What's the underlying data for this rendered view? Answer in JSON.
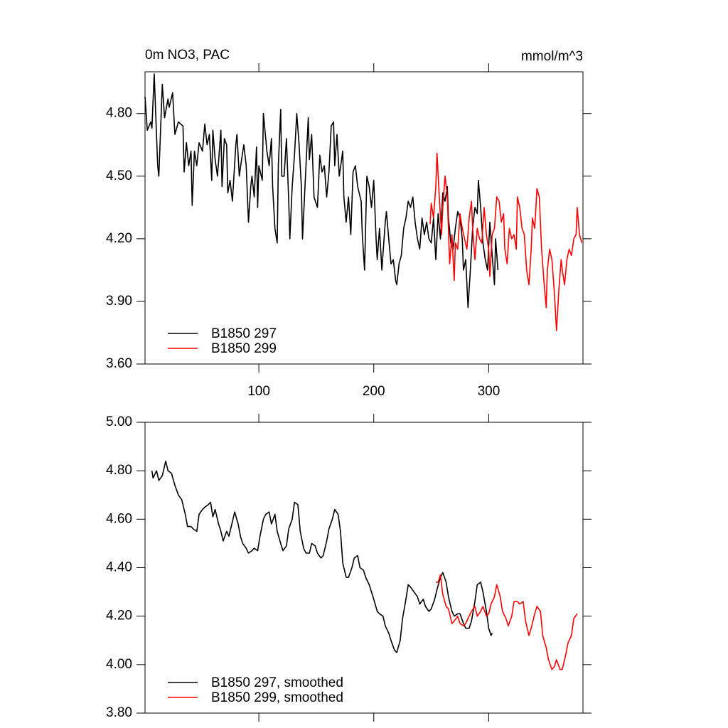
{
  "chart_data": [
    {
      "type": "line",
      "title": "0m NO3, PAC",
      "units": "mmol/m^3",
      "xlim": [
        1,
        382
      ],
      "xticks": [
        100,
        200,
        300
      ],
      "xtick_labels": true,
      "ylim": [
        3.6,
        5.0
      ],
      "yticks": [
        {
          "value": 3.6,
          "label": "3.60"
        },
        {
          "value": 3.9,
          "label": "3.90"
        },
        {
          "value": 4.2,
          "label": "4.20"
        },
        {
          "value": 4.5,
          "label": "4.50"
        },
        {
          "value": 4.8,
          "label": "4.80"
        }
      ],
      "legend": "lower left",
      "series": [
        {
          "name": "B1850 297",
          "color": "#000000",
          "x": [
            1,
            3,
            6,
            7,
            9,
            12,
            13,
            16,
            18,
            21,
            22,
            25,
            27,
            30,
            34,
            35,
            37,
            39,
            41,
            42,
            44,
            46,
            48,
            51,
            53,
            55,
            57,
            59,
            60,
            62,
            64,
            67,
            68,
            70,
            72,
            73,
            75,
            77,
            80,
            81,
            83,
            85,
            87,
            89,
            91,
            93,
            94,
            96,
            98,
            99,
            100,
            103,
            104,
            107,
            109,
            111,
            112,
            114,
            116,
            117,
            119,
            120,
            122,
            124,
            126,
            127,
            129,
            131,
            133,
            135,
            137,
            138,
            141,
            143,
            144,
            146,
            148,
            151,
            153,
            155,
            157,
            159,
            161,
            163,
            165,
            166,
            168,
            170,
            173,
            174,
            176,
            178,
            180,
            182,
            184,
            186,
            189,
            190,
            192,
            194,
            196,
            198,
            200,
            202,
            203,
            205,
            207,
            210,
            211,
            213,
            215,
            217,
            219,
            220,
            222,
            224,
            226,
            228,
            230,
            232,
            234,
            236,
            238,
            240,
            242,
            244,
            246,
            248,
            250,
            252,
            254,
            256,
            258,
            260,
            262,
            264,
            265,
            267,
            269,
            271,
            273,
            275,
            277,
            278,
            280,
            282,
            284,
            286,
            288,
            290,
            291,
            293,
            295,
            297,
            299,
            301,
            303,
            305,
            306,
            308
          ],
          "values": [
            4.88,
            4.72,
            4.76,
            4.73,
            4.99,
            4.55,
            4.5,
            4.94,
            4.78,
            4.87,
            4.83,
            4.9,
            4.7,
            4.76,
            4.74,
            4.52,
            4.66,
            4.55,
            4.62,
            4.36,
            4.62,
            4.55,
            4.66,
            4.62,
            4.75,
            4.65,
            4.7,
            4.48,
            4.72,
            4.58,
            4.5,
            4.72,
            4.45,
            4.68,
            4.65,
            4.42,
            4.48,
            4.38,
            4.65,
            4.7,
            4.5,
            4.58,
            4.65,
            4.55,
            4.28,
            4.45,
            4.5,
            4.4,
            4.64,
            4.35,
            4.55,
            4.48,
            4.8,
            4.62,
            4.55,
            4.68,
            4.45,
            4.25,
            4.18,
            4.55,
            4.82,
            4.5,
            4.5,
            4.68,
            4.38,
            4.2,
            4.45,
            4.6,
            4.8,
            4.65,
            4.45,
            4.2,
            4.55,
            4.78,
            4.58,
            4.7,
            4.4,
            4.35,
            4.6,
            4.52,
            4.55,
            4.4,
            4.52,
            4.74,
            4.76,
            4.55,
            4.7,
            4.5,
            4.62,
            4.4,
            4.28,
            4.4,
            4.22,
            4.52,
            4.55,
            4.45,
            4.38,
            4.22,
            4.05,
            4.5,
            4.45,
            4.35,
            4.48,
            4.2,
            4.1,
            4.25,
            4.05,
            4.28,
            4.33,
            4.2,
            4.08,
            4.1,
            4.0,
            3.98,
            4.08,
            4.12,
            4.25,
            4.3,
            4.38,
            4.35,
            4.4,
            4.28,
            4.2,
            4.15,
            4.3,
            4.22,
            4.28,
            4.2,
            4.18,
            4.3,
            4.1,
            4.32,
            4.2,
            4.42,
            4.38,
            4.45,
            4.3,
            4.18,
            4.15,
            4.25,
            4.33,
            4.3,
            4.2,
            4.05,
            4.1,
            3.87,
            4.05,
            4.25,
            4.35,
            4.32,
            4.48,
            4.35,
            4.18,
            4.1,
            4.05,
            4.28,
            4.12,
            3.98,
            4.2,
            4.05
          ]
        },
        {
          "name": "B1850 299",
          "color": "#ff0000",
          "x": [
            249,
            250,
            252,
            254,
            255,
            257,
            259,
            260,
            262,
            264,
            266,
            268,
            270,
            271,
            273,
            275,
            277,
            279,
            281,
            283,
            285,
            286,
            288,
            290,
            292,
            294,
            296,
            298,
            300,
            301,
            303,
            305,
            307,
            309,
            311,
            313,
            314,
            316,
            318,
            320,
            322,
            324,
            325,
            327,
            329,
            331,
            333,
            335,
            337,
            338,
            340,
            342,
            344,
            346,
            348,
            350,
            351,
            353,
            355,
            357,
            359,
            361,
            363,
            364,
            366,
            368,
            370,
            372,
            374,
            376,
            377,
            379,
            381
          ],
          "values": [
            4.27,
            4.37,
            4.3,
            4.45,
            4.61,
            4.4,
            4.22,
            4.35,
            4.5,
            4.4,
            4.08,
            4.22,
            4.0,
            4.18,
            4.15,
            4.32,
            4.25,
            4.2,
            4.15,
            4.3,
            4.38,
            4.25,
            4.1,
            4.25,
            4.2,
            4.18,
            4.35,
            4.22,
            4.15,
            4.02,
            4.22,
            4.25,
            4.4,
            4.38,
            4.28,
            4.32,
            4.15,
            4.08,
            4.25,
            4.2,
            4.22,
            4.15,
            4.4,
            4.35,
            4.25,
            4.22,
            4.05,
            3.98,
            4.15,
            4.3,
            4.25,
            4.44,
            4.4,
            4.15,
            4.0,
            3.87,
            4.05,
            4.15,
            4.1,
            3.95,
            3.76,
            3.95,
            4.1,
            4.05,
            3.98,
            4.1,
            4.15,
            4.12,
            4.2,
            4.22,
            4.35,
            4.22,
            4.18
          ]
        }
      ]
    },
    {
      "type": "line",
      "xlim": [
        1,
        382
      ],
      "xticks": [
        100,
        200,
        300
      ],
      "xtick_labels": false,
      "ylim": [
        3.8,
        5.0
      ],
      "yticks": [
        {
          "value": 3.8,
          "label": "3.80"
        },
        {
          "value": 4.0,
          "label": "4.00"
        },
        {
          "value": 4.2,
          "label": "4.20"
        },
        {
          "value": 4.4,
          "label": "4.40"
        },
        {
          "value": 4.6,
          "label": "4.60"
        },
        {
          "value": 4.8,
          "label": "4.80"
        },
        {
          "value": 5.0,
          "label": "5.00"
        }
      ],
      "legend": "lower left",
      "series": [
        {
          "name": "B1850 297, smoothed",
          "color": "#000000",
          "x": [
            7,
            8,
            11,
            13,
            16,
            19,
            21,
            24,
            27,
            30,
            33,
            36,
            38,
            41,
            43,
            46,
            48,
            51,
            53,
            56,
            58,
            60,
            62,
            65,
            67,
            69,
            72,
            74,
            77,
            79,
            82,
            84,
            86,
            89,
            91,
            94,
            96,
            99,
            101,
            104,
            106,
            109,
            111,
            114,
            116,
            119,
            121,
            124,
            126,
            129,
            131,
            134,
            136,
            139,
            141,
            144,
            146,
            149,
            151,
            154,
            156,
            159,
            161,
            164,
            166,
            169,
            171,
            173,
            176,
            178,
            181,
            183,
            186,
            188,
            191,
            193,
            196,
            198,
            200,
            203,
            205,
            208,
            210,
            213,
            215,
            218,
            220,
            223,
            225,
            228,
            230,
            232,
            235,
            238,
            240,
            243,
            245,
            248,
            250,
            253,
            255,
            258,
            260,
            263,
            265,
            268,
            270,
            273,
            275,
            278,
            280,
            283,
            285,
            288,
            290,
            293,
            295,
            298,
            300,
            302,
            303
          ],
          "values": [
            4.8,
            4.77,
            4.8,
            4.76,
            4.78,
            4.84,
            4.8,
            4.79,
            4.74,
            4.7,
            4.68,
            4.62,
            4.57,
            4.57,
            4.56,
            4.55,
            4.62,
            4.64,
            4.65,
            4.66,
            4.67,
            4.61,
            4.64,
            4.58,
            4.55,
            4.51,
            4.55,
            4.53,
            4.59,
            4.63,
            4.58,
            4.53,
            4.5,
            4.48,
            4.46,
            4.47,
            4.48,
            4.47,
            4.53,
            4.6,
            4.62,
            4.63,
            4.58,
            4.62,
            4.55,
            4.5,
            4.47,
            4.49,
            4.56,
            4.6,
            4.67,
            4.66,
            4.55,
            4.48,
            4.46,
            4.46,
            4.5,
            4.49,
            4.46,
            4.44,
            4.45,
            4.51,
            4.56,
            4.6,
            4.64,
            4.62,
            4.55,
            4.42,
            4.36,
            4.36,
            4.4,
            4.44,
            4.45,
            4.4,
            4.39,
            4.36,
            4.33,
            4.3,
            4.27,
            4.22,
            4.21,
            4.2,
            4.16,
            4.13,
            4.1,
            4.06,
            4.05,
            4.1,
            4.19,
            4.27,
            4.33,
            4.32,
            4.3,
            4.28,
            4.25,
            4.27,
            4.24,
            4.22,
            4.23,
            4.27,
            4.31,
            4.36,
            4.38,
            4.34,
            4.28,
            4.22,
            4.2,
            4.21,
            4.21,
            4.17,
            4.15,
            4.15,
            4.18,
            4.26,
            4.33,
            4.34,
            4.3,
            4.22,
            4.15,
            4.12,
            4.13
          ]
        },
        {
          "name": "B1850 299, smoothed",
          "color": "#ff0000",
          "x": [
            254,
            256,
            258,
            260,
            263,
            265,
            268,
            270,
            273,
            275,
            278,
            280,
            283,
            285,
            288,
            290,
            293,
            295,
            298,
            300,
            302,
            305,
            307,
            310,
            312,
            315,
            317,
            320,
            322,
            325,
            327,
            330,
            332,
            335,
            337,
            340,
            342,
            345,
            347,
            350,
            352,
            355,
            357,
            359,
            362,
            364,
            367,
            369,
            372,
            374,
            377
          ],
          "values": [
            4.34,
            4.34,
            4.37,
            4.29,
            4.24,
            4.23,
            4.17,
            4.18,
            4.2,
            4.17,
            4.16,
            4.17,
            4.2,
            4.22,
            4.24,
            4.2,
            4.22,
            4.24,
            4.2,
            4.21,
            4.25,
            4.28,
            4.33,
            4.28,
            4.22,
            4.19,
            4.16,
            4.2,
            4.26,
            4.26,
            4.25,
            4.26,
            4.18,
            4.12,
            4.15,
            4.21,
            4.24,
            4.22,
            4.12,
            4.07,
            4.02,
            3.98,
            3.99,
            4.02,
            3.98,
            3.98,
            4.04,
            4.09,
            4.12,
            4.19,
            4.21
          ]
        }
      ]
    }
  ]
}
